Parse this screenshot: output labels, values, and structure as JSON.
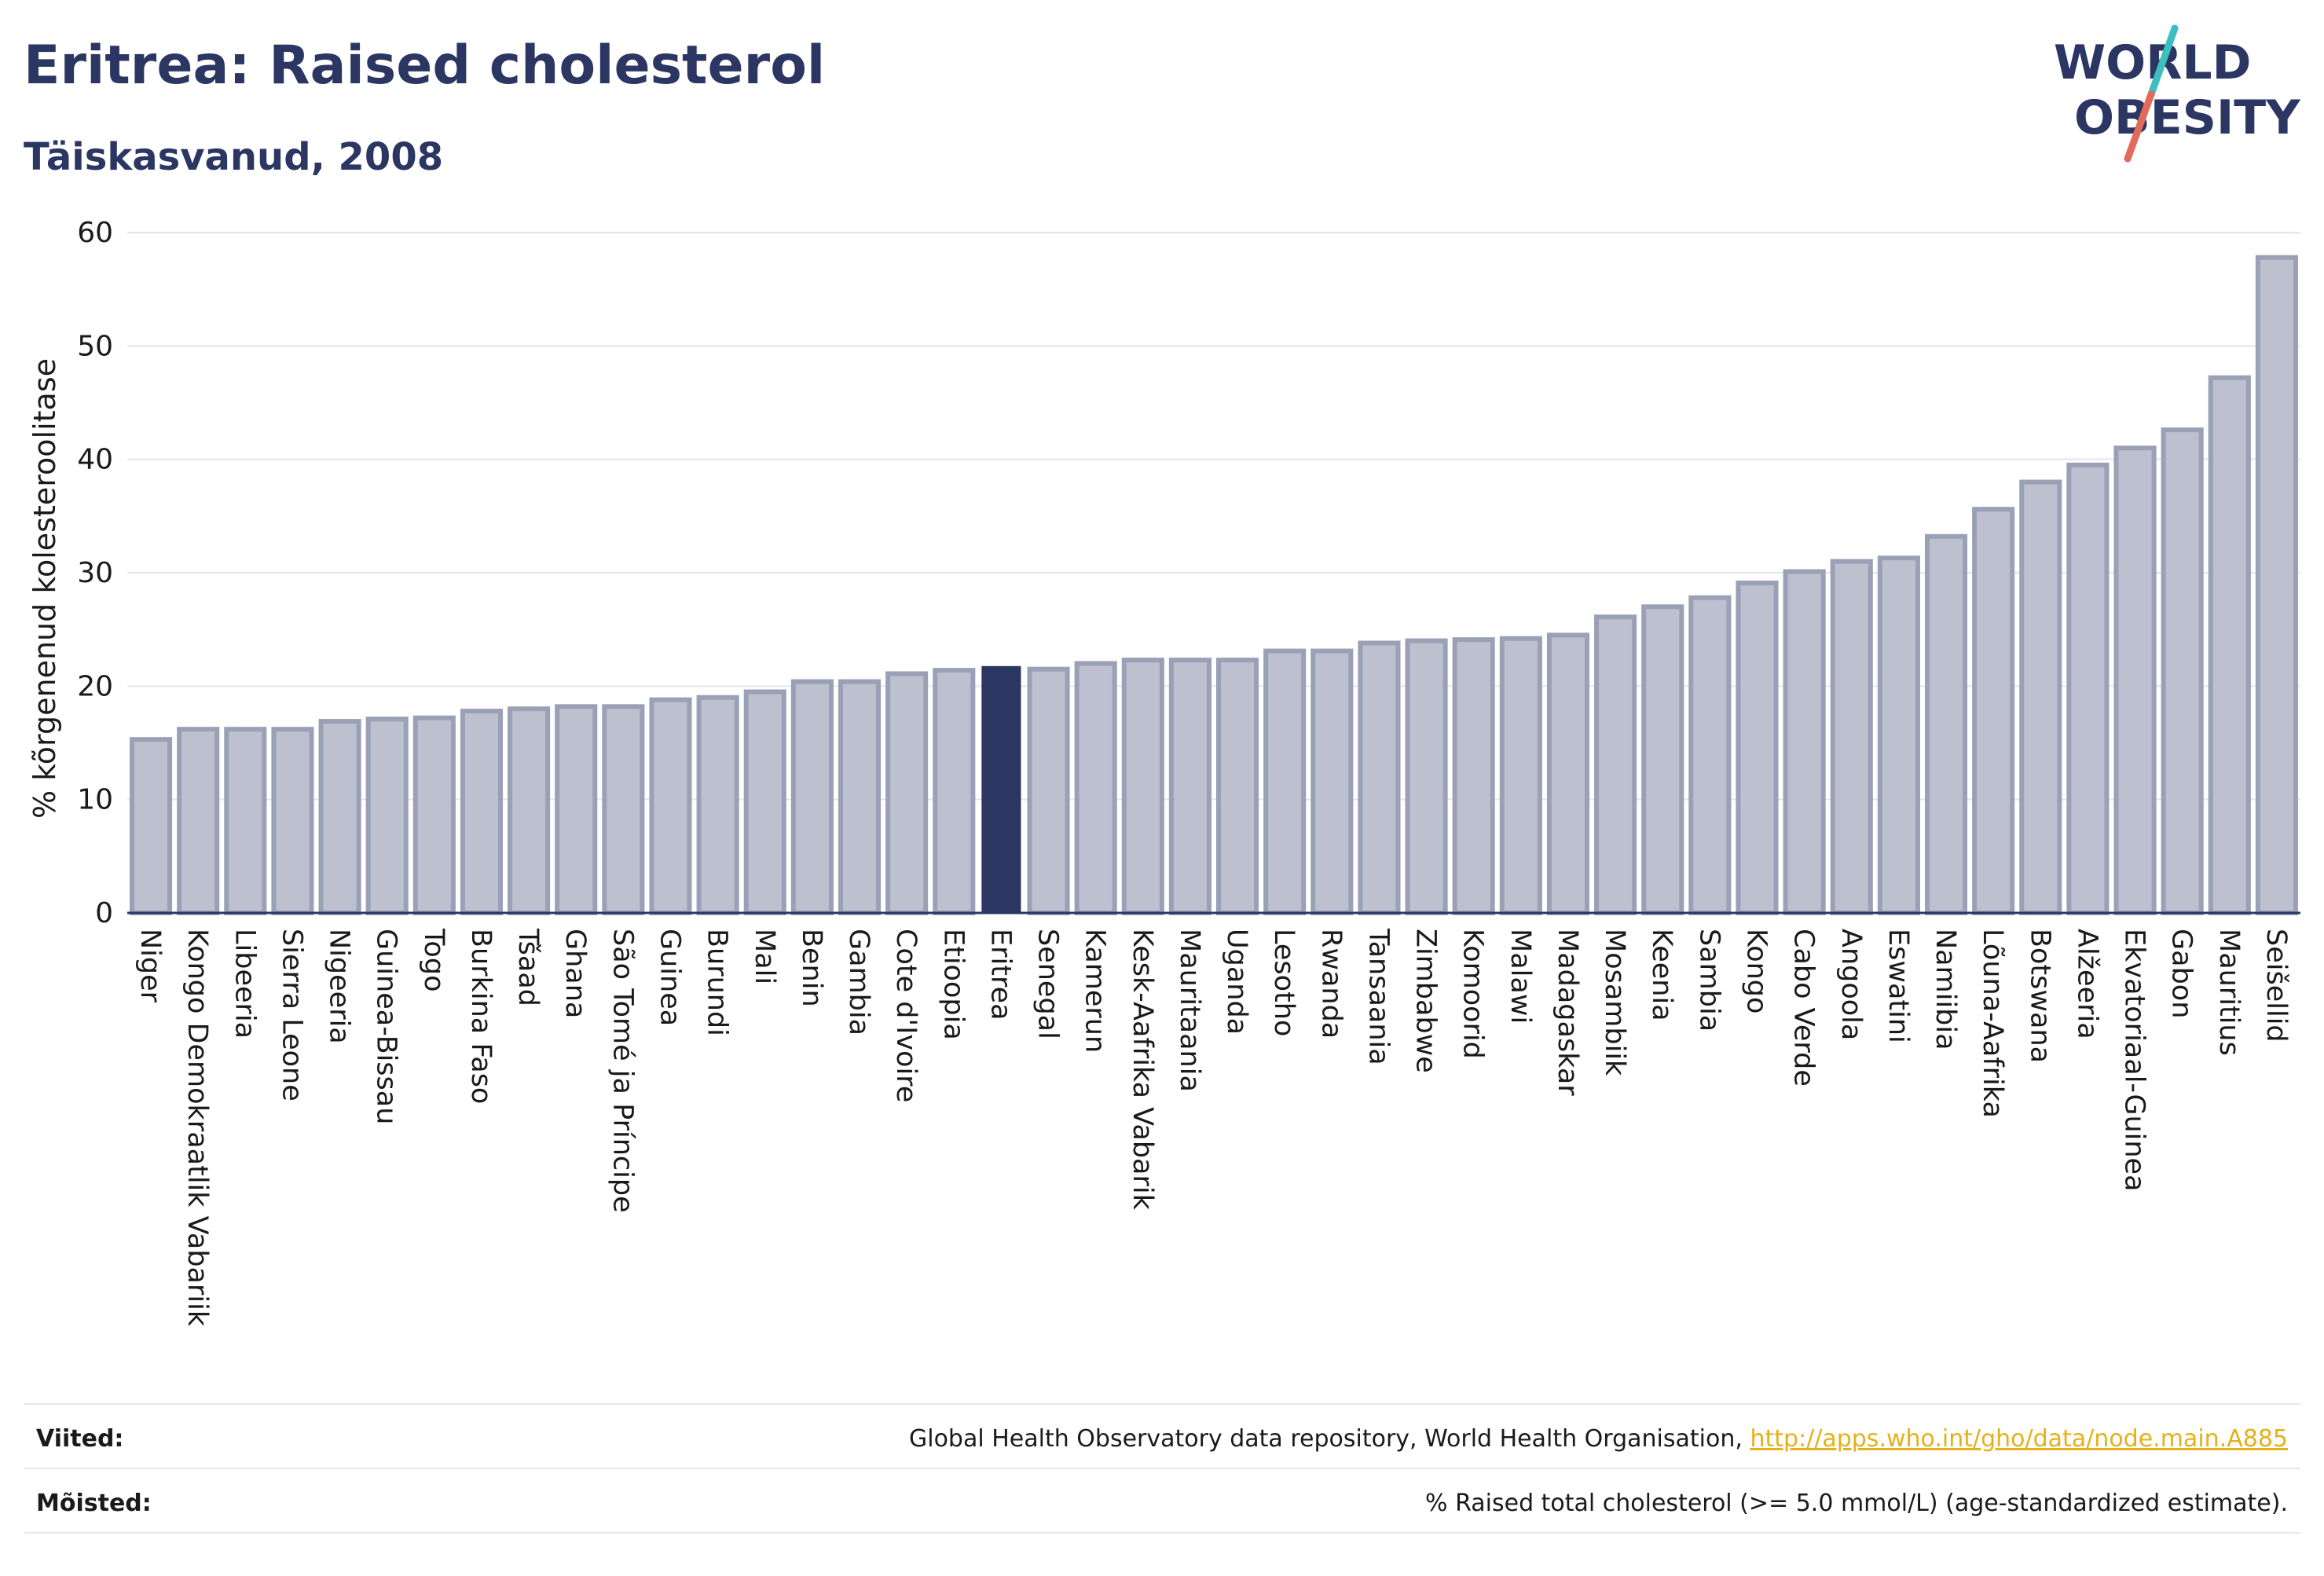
{
  "header": {
    "title": "Eritrea: Raised cholesterol",
    "subtitle": "Täiskasvanud, 2008"
  },
  "logo": {
    "line1": "WORLD",
    "line2": "OBESITY",
    "colors": {
      "text": "#2b3663",
      "slash_teal": "#3ebfbf",
      "slash_red": "#e36a5a"
    }
  },
  "chart_data": {
    "type": "bar",
    "ylabel": "% kõrgenenud kolesteroolitase",
    "xlabel": "",
    "ylim": [
      0,
      60
    ],
    "yticks": [
      0,
      10,
      20,
      30,
      40,
      50,
      60
    ],
    "grid": true,
    "highlight": "Eritrea",
    "colors": {
      "bar": "#bcc0cf",
      "bar_border": "#9aa0b5",
      "highlight": "#2b3663",
      "grid": "#e3e5ec"
    },
    "categories": [
      "Niger",
      "Kongo Demokraatlik Vabariik",
      "Libeeria",
      "Sierra Leone",
      "Nigeeria",
      "Guinea-Bissau",
      "Togo",
      "Burkina Faso",
      "Tšaad",
      "Ghana",
      "São Tomé ja Príncipe",
      "Guinea",
      "Burundi",
      "Mali",
      "Benin",
      "Gambia",
      "Cote d'Ivoire",
      "Etioopia",
      "Eritrea",
      "Senegal",
      "Kamerun",
      "Kesk-Aafrika Vabarik",
      "Mauritaania",
      "Uganda",
      "Lesotho",
      "Rwanda",
      "Tansaania",
      "Zimbabwe",
      "Komoorid",
      "Malawi",
      "Madagaskar",
      "Mosambiik",
      "Keenia",
      "Sambia",
      "Kongo",
      "Cabo Verde",
      "Angoola",
      "Eswatini",
      "Namiibia",
      "Lõuna-Aafrika",
      "Botswana",
      "Alžeeria",
      "Ekvatoriaal-Guinea",
      "Gabon",
      "Mauritius",
      "Seišellid"
    ],
    "values": [
      15.3,
      16.2,
      16.2,
      16.2,
      16.9,
      17.1,
      17.2,
      17.8,
      18.0,
      18.2,
      18.2,
      18.8,
      19.0,
      19.5,
      20.4,
      20.4,
      21.1,
      21.4,
      21.7,
      21.5,
      22.0,
      22.3,
      22.3,
      22.3,
      23.1,
      23.1,
      23.8,
      24.0,
      24.1,
      24.2,
      24.5,
      26.1,
      27.0,
      27.8,
      29.1,
      30.1,
      31.0,
      31.3,
      33.2,
      35.6,
      38.0,
      39.5,
      41.0,
      42.6,
      47.2,
      57.8
    ]
  },
  "footer": {
    "sources_label": "Viited:",
    "sources_text": "Global Health Observatory data repository, World Health Organisation,",
    "sources_link": "http://apps.who.int/gho/data/node.main.A885",
    "definitions_label": "Mõisted:",
    "definitions_text": "% Raised total cholesterol (>= 5.0 mmol/L) (age-standardized estimate)."
  }
}
